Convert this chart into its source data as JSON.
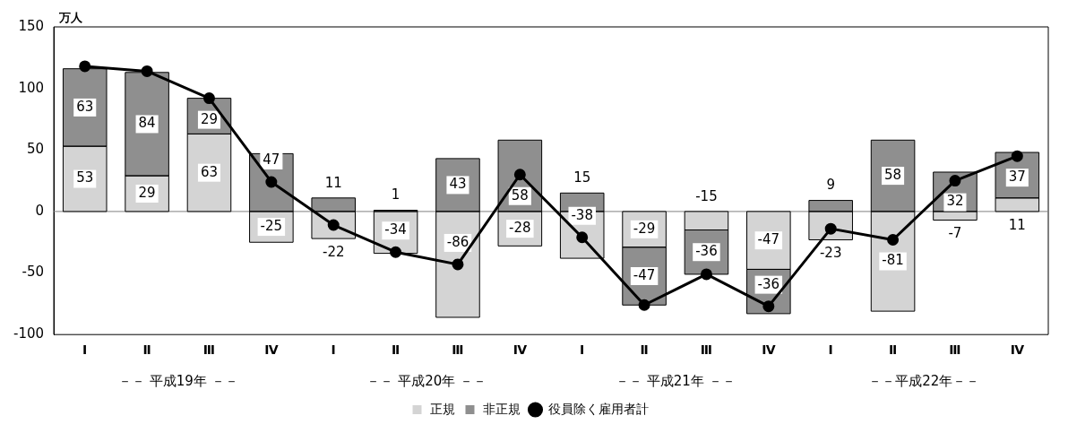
{
  "chart_data": {
    "type": "bar",
    "ylabel": "万人",
    "categories": [
      "Ⅰ",
      "Ⅱ",
      "Ⅲ",
      "Ⅳ",
      "Ⅰ",
      "Ⅱ",
      "Ⅲ",
      "Ⅳ",
      "Ⅰ",
      "Ⅱ",
      "Ⅲ",
      "Ⅳ",
      "Ⅰ",
      "Ⅱ",
      "Ⅲ",
      "Ⅳ"
    ],
    "stacked": true,
    "series": [
      {
        "name": "正規",
        "color": "#d4d4d4",
        "values": [
          53,
          29,
          63,
          -25,
          -22,
          -34,
          -86,
          -28,
          -38,
          -29,
          -15,
          -47,
          -23,
          -81,
          -7,
          11
        ],
        "value_labels": [
          "53",
          "29",
          "63",
          "-25",
          "-22",
          "-34",
          "-86",
          "-28",
          "-38",
          "-29",
          "-15",
          "-47",
          "-23",
          "-81",
          "-7",
          "11"
        ]
      },
      {
        "name": "非正規",
        "color": "#8f8f8f",
        "values": [
          63,
          84,
          29,
          47,
          11,
          1,
          43,
          58,
          15,
          -47,
          -36,
          -36,
          9,
          58,
          32,
          37
        ],
        "value_labels": [
          "63",
          "84",
          "29",
          "47",
          "11",
          "1",
          "43",
          "58",
          "15",
          "-47",
          "-36",
          "-36",
          "9",
          "58",
          "32",
          "37"
        ]
      },
      {
        "name": "役員除く雇用者計",
        "type": "line",
        "color": "#000000",
        "values": [
          118,
          114,
          92,
          24,
          -11,
          -33,
          -43,
          30,
          -21,
          -76,
          -51,
          -77,
          -14,
          -23,
          25,
          45
        ]
      }
    ],
    "marker": "circle",
    "ylim": [
      -100,
      150
    ],
    "yticks": [
      -100,
      -50,
      0,
      50,
      100,
      150
    ],
    "legend": "bottom",
    "annotations": [
      "－－ 平成19年 －－",
      "－－ 平成20年 －－",
      "－－ 平成21年 －－",
      "－－平成22年－－"
    ]
  }
}
